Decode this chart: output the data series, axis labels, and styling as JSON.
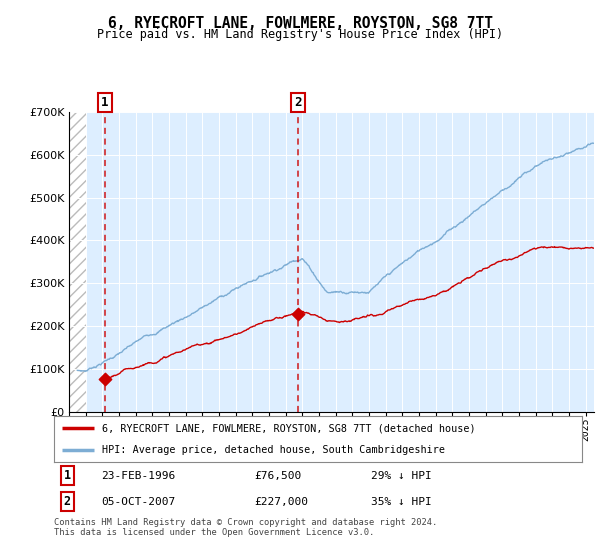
{
  "title": "6, RYECROFT LANE, FOWLMERE, ROYSTON, SG8 7TT",
  "subtitle": "Price paid vs. HM Land Registry's House Price Index (HPI)",
  "legend_line1": "6, RYECROFT LANE, FOWLMERE, ROYSTON, SG8 7TT (detached house)",
  "legend_line2": "HPI: Average price, detached house, South Cambridgeshire",
  "annotation1_date": "23-FEB-1996",
  "annotation1_price": "£76,500",
  "annotation1_hpi": "29% ↓ HPI",
  "annotation2_date": "05-OCT-2007",
  "annotation2_price": "£227,000",
  "annotation2_hpi": "35% ↓ HPI",
  "footer": "Contains HM Land Registry data © Crown copyright and database right 2024.\nThis data is licensed under the Open Government Licence v3.0.",
  "sale1_year": 1996.15,
  "sale1_price": 76500,
  "sale2_year": 2007.76,
  "sale2_price": 227000,
  "red_line_color": "#cc0000",
  "blue_line_color": "#7dadd4",
  "background_color": "#ddeeff",
  "ylim": [
    0,
    700000
  ],
  "yticks": [
    0,
    100000,
    200000,
    300000,
    400000,
    500000,
    600000,
    700000
  ],
  "xmin": 1994,
  "xmax": 2025.5
}
